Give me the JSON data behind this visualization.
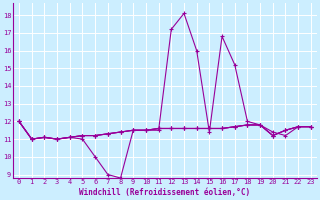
{
  "xlabel": "Windchill (Refroidissement éolien,°C)",
  "xlim": [
    -0.5,
    23.5
  ],
  "ylim": [
    8.8,
    18.7
  ],
  "yticks": [
    9,
    10,
    11,
    12,
    13,
    14,
    15,
    16,
    17,
    18
  ],
  "xticks": [
    0,
    1,
    2,
    3,
    4,
    5,
    6,
    7,
    8,
    9,
    10,
    11,
    12,
    13,
    14,
    15,
    16,
    17,
    18,
    19,
    20,
    21,
    22,
    23
  ],
  "bg_color": "#cceeff",
  "line_color": "#990099",
  "series": [
    [
      12,
      11,
      11.1,
      11.0,
      11.1,
      11.0,
      10.0,
      9.0,
      8.8,
      11.5,
      11.5,
      11.5,
      17.2,
      18.1,
      16.0,
      11.4,
      16.8,
      15.2,
      12.0,
      11.8,
      11.4,
      11.2,
      11.7,
      11.7
    ],
    [
      12,
      11,
      11.1,
      11.0,
      11.1,
      11.2,
      11.2,
      11.3,
      11.4,
      11.5,
      11.5,
      11.6,
      11.6,
      11.6,
      11.6,
      11.6,
      11.6,
      11.7,
      11.8,
      11.8,
      11.2,
      11.5,
      11.7,
      11.7
    ],
    [
      12,
      11,
      11.1,
      11.0,
      11.1,
      11.2,
      11.2,
      11.3,
      11.4,
      11.5,
      11.5,
      11.6,
      11.6,
      11.6,
      11.6,
      11.6,
      11.6,
      11.7,
      11.8,
      11.8,
      11.2,
      11.5,
      11.7,
      11.7
    ],
    [
      12,
      11,
      11.1,
      11.0,
      11.1,
      11.2,
      11.2,
      11.3,
      11.4,
      11.5,
      11.5,
      11.6,
      11.6,
      11.6,
      11.6,
      11.6,
      11.6,
      11.7,
      11.8,
      11.8,
      11.2,
      11.5,
      11.7,
      11.7
    ]
  ],
  "marker": "+",
  "marker_size": 3,
  "linewidth": 0.8,
  "grid_color": "#ffffff",
  "font_color": "#990099",
  "font_size_tick": 5,
  "font_size_label": 5.5
}
